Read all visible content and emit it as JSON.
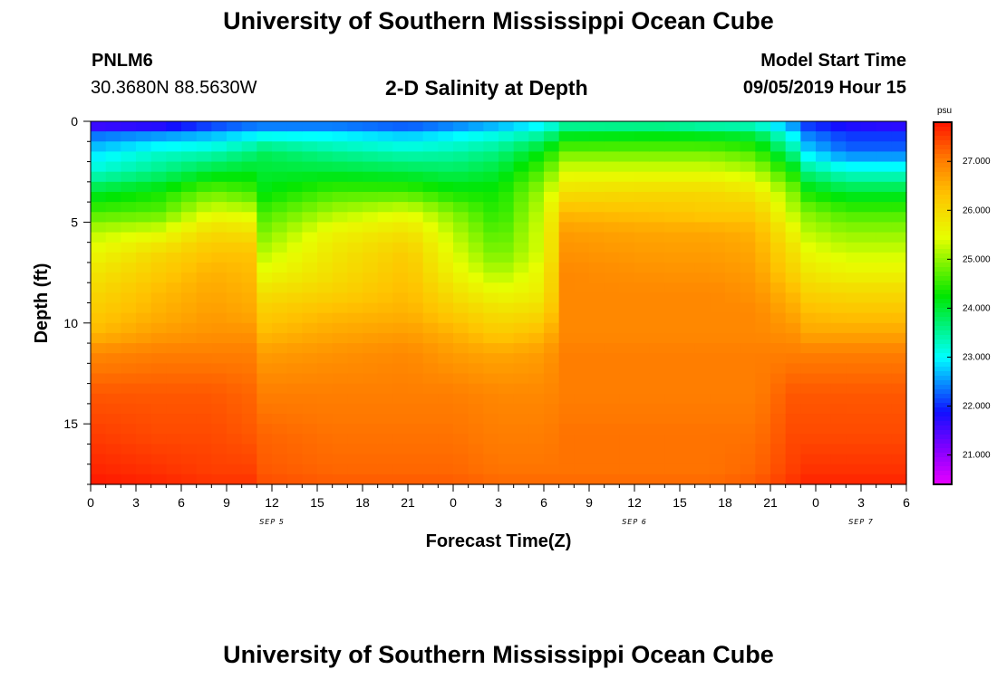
{
  "header": {
    "title": "University of Southern Mississippi Ocean Cube",
    "station_id": "PNLM6",
    "station_coords": "30.3680N 88.5630W",
    "subtitle": "2-D Salinity at Depth",
    "model_start_label": "Model Start Time",
    "model_start_value": "09/05/2019 Hour 15"
  },
  "footer": {
    "title": "University of Southern Mississippi Ocean Cube"
  },
  "chart_data": {
    "type": "heatmap",
    "title": "2-D Salinity at Depth",
    "xlabel": "Forecast Time(Z)",
    "ylabel": "Depth (ft)",
    "xlim": [
      0,
      54
    ],
    "ylim": [
      0,
      18
    ],
    "x_ticks": [
      {
        "hour": 0,
        "label": "0"
      },
      {
        "hour": 3,
        "label": "3"
      },
      {
        "hour": 6,
        "label": "6"
      },
      {
        "hour": 9,
        "label": "9"
      },
      {
        "hour": 12,
        "label": "12"
      },
      {
        "hour": 15,
        "label": "15"
      },
      {
        "hour": 18,
        "label": "18"
      },
      {
        "hour": 21,
        "label": "21"
      },
      {
        "hour": 24,
        "label": "0"
      },
      {
        "hour": 27,
        "label": "3"
      },
      {
        "hour": 30,
        "label": "6"
      },
      {
        "hour": 33,
        "label": "9"
      },
      {
        "hour": 36,
        "label": "12"
      },
      {
        "hour": 39,
        "label": "15"
      },
      {
        "hour": 42,
        "label": "18"
      },
      {
        "hour": 45,
        "label": "21"
      },
      {
        "hour": 48,
        "label": "0"
      },
      {
        "hour": 51,
        "label": "3"
      },
      {
        "hour": 54,
        "label": "6"
      }
    ],
    "y_ticks": [
      0,
      5,
      10,
      15
    ],
    "day_labels": [
      {
        "hour": 12,
        "label": "SEP 5"
      },
      {
        "hour": 36,
        "label": "SEP 6"
      },
      {
        "hour": 51,
        "label": "SEP 7"
      }
    ],
    "colorbar": {
      "unit": "psu",
      "min": 20.4,
      "max": 27.8,
      "ticks": [
        "21.000",
        "22.000",
        "23.000",
        "24.000",
        "25.000",
        "26.000",
        "27.000"
      ]
    },
    "time_knots": [
      0,
      4.5,
      8,
      10.5,
      11.5,
      16,
      21,
      24,
      27,
      30,
      31.5,
      38,
      41,
      44,
      46.5,
      47.5,
      50,
      54
    ],
    "depth_knots": [
      0,
      0.5,
      1.5,
      2.5,
      3.5,
      4.5,
      5.5,
      6.5,
      7.5,
      8.5,
      9.5,
      10.5,
      11.5,
      13.5,
      15.5,
      17.5,
      18
    ],
    "salinity_psu": [
      [
        21.0,
        21.2,
        21.8,
        22.0,
        22.0,
        22.0,
        21.9,
        22.1,
        22.4,
        22.8,
        23.2,
        23.2,
        23.0,
        23.0,
        22.3,
        21.9,
        21.6,
        21.4
      ],
      [
        22.2,
        22.3,
        22.5,
        22.7,
        22.8,
        22.8,
        22.6,
        22.8,
        23.0,
        23.3,
        23.9,
        24.0,
        23.9,
        23.8,
        22.8,
        22.3,
        22.0,
        22.0
      ],
      [
        22.8,
        23.2,
        23.3,
        23.6,
        23.8,
        23.5,
        23.3,
        23.4,
        23.6,
        24.2,
        24.8,
        24.8,
        24.8,
        24.6,
        23.5,
        22.8,
        22.3,
        22.3
      ],
      [
        23.2,
        23.6,
        24.0,
        24.1,
        24.0,
        24.0,
        23.9,
        23.8,
        24.0,
        24.7,
        25.4,
        25.4,
        25.4,
        25.2,
        24.3,
        23.6,
        23.2,
        23.2
      ],
      [
        24.0,
        24.3,
        24.8,
        24.6,
        24.2,
        24.6,
        24.6,
        24.3,
        24.3,
        25.1,
        25.9,
        26.0,
        26.0,
        25.8,
        24.9,
        24.3,
        24.0,
        24.0
      ],
      [
        24.6,
        24.7,
        25.4,
        25.3,
        24.6,
        25.1,
        25.4,
        24.9,
        24.4,
        25.3,
        26.4,
        26.3,
        26.2,
        26.2,
        25.2,
        24.9,
        24.6,
        24.6
      ],
      [
        25.2,
        25.4,
        26.0,
        25.9,
        24.9,
        25.6,
        25.9,
        25.2,
        24.6,
        25.4,
        26.7,
        26.6,
        26.6,
        26.5,
        25.6,
        25.2,
        25.0,
        25.0
      ],
      [
        25.5,
        26.0,
        26.3,
        26.3,
        25.2,
        25.8,
        26.2,
        25.4,
        24.8,
        25.4,
        26.8,
        26.7,
        26.7,
        26.6,
        25.9,
        25.5,
        25.3,
        25.3
      ],
      [
        25.8,
        26.2,
        26.5,
        26.4,
        25.5,
        25.9,
        26.3,
        25.6,
        25.1,
        25.6,
        26.9,
        26.8,
        26.8,
        26.7,
        26.1,
        25.8,
        25.6,
        25.6
      ],
      [
        26.0,
        26.4,
        26.6,
        26.5,
        25.9,
        26.1,
        26.4,
        25.9,
        25.5,
        25.7,
        26.9,
        26.9,
        26.9,
        26.8,
        26.4,
        26.1,
        26.0,
        26.0
      ],
      [
        26.2,
        26.5,
        26.7,
        26.6,
        26.2,
        26.4,
        26.5,
        26.2,
        25.9,
        26.0,
        26.9,
        26.9,
        26.9,
        26.9,
        26.6,
        26.4,
        26.3,
        26.3
      ],
      [
        26.4,
        26.7,
        26.8,
        26.8,
        26.4,
        26.6,
        26.7,
        26.5,
        26.2,
        26.4,
        26.9,
        26.9,
        26.9,
        26.9,
        26.8,
        26.6,
        26.6,
        26.6
      ],
      [
        26.9,
        27.0,
        27.0,
        27.0,
        26.7,
        26.8,
        26.9,
        26.7,
        26.6,
        26.7,
        27.0,
        27.0,
        27.0,
        27.0,
        27.0,
        27.0,
        27.0,
        27.0
      ],
      [
        27.3,
        27.3,
        27.3,
        27.2,
        27.0,
        27.0,
        27.0,
        27.0,
        26.9,
        26.9,
        27.0,
        27.0,
        27.0,
        27.0,
        27.3,
        27.3,
        27.3,
        27.3
      ],
      [
        27.5,
        27.4,
        27.4,
        27.3,
        27.2,
        27.1,
        27.1,
        27.1,
        27.0,
        27.0,
        27.1,
        27.1,
        27.1,
        27.1,
        27.4,
        27.4,
        27.4,
        27.4
      ],
      [
        27.7,
        27.6,
        27.5,
        27.5,
        27.3,
        27.2,
        27.2,
        27.2,
        27.1,
        27.1,
        27.1,
        27.1,
        27.1,
        27.2,
        27.5,
        27.6,
        27.6,
        27.6
      ],
      [
        27.8,
        27.7,
        27.6,
        27.6,
        27.4,
        27.3,
        27.3,
        27.3,
        27.2,
        27.2,
        27.2,
        27.2,
        27.2,
        27.3,
        27.6,
        27.7,
        27.7,
        27.7
      ]
    ]
  }
}
